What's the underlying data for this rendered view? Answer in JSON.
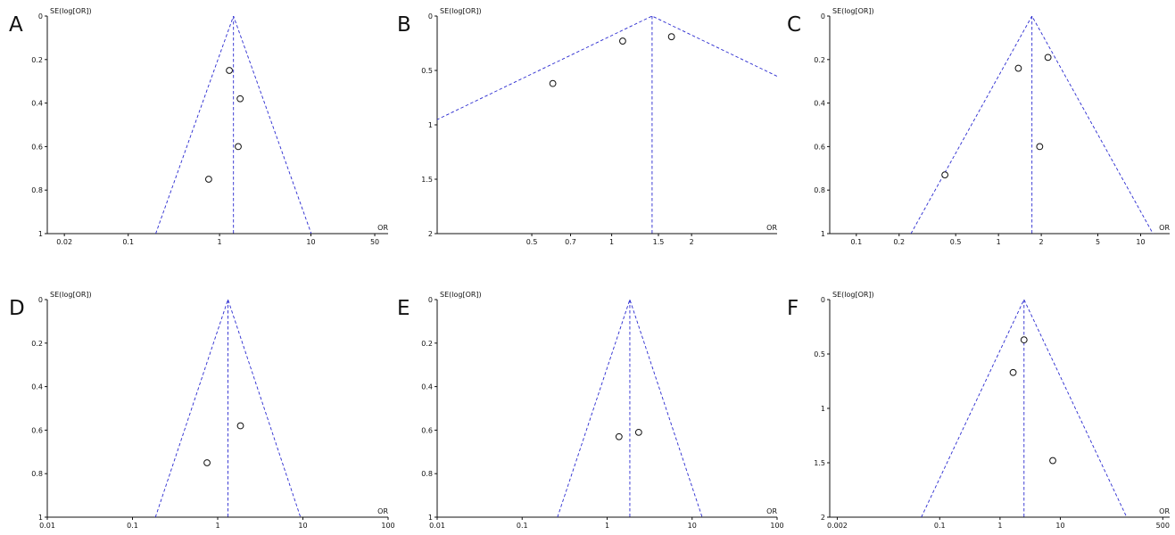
{
  "chart_data": [
    {
      "type": "scatter",
      "panel": "A",
      "ylabel": "SE(log[OR])",
      "xlabel": "OR",
      "xscale": "log",
      "xlim": [
        0.013,
        70
      ],
      "ylim": [
        0,
        1
      ],
      "y_inverted": true,
      "xticks": [
        0.02,
        0.1,
        1,
        10,
        50
      ],
      "xtick_labels": [
        "0.02",
        "0.1",
        "1",
        "10",
        "50"
      ],
      "yticks": [
        0,
        0.2,
        0.4,
        0.6,
        0.8,
        1
      ],
      "ytick_labels": [
        "0",
        "0.2",
        "0.4",
        "0.6",
        "0.8",
        "1"
      ],
      "pooled_or": 1.42,
      "points": [
        {
          "x": 1.28,
          "y": 0.25
        },
        {
          "x": 1.68,
          "y": 0.38
        },
        {
          "x": 1.6,
          "y": 0.6
        },
        {
          "x": 0.76,
          "y": 0.75
        }
      ]
    },
    {
      "type": "scatter",
      "panel": "B",
      "ylabel": "SE(log[OR])",
      "xlabel": "OR",
      "xscale": "log",
      "xlim": [
        0.22,
        4.2
      ],
      "ylim": [
        0,
        2
      ],
      "y_inverted": true,
      "xticks": [
        0.5,
        0.7,
        1,
        1.5,
        2
      ],
      "xtick_labels": [
        "0.5",
        "0.7",
        "1",
        "1.5",
        "2"
      ],
      "yticks": [
        0,
        0.5,
        1,
        1.5,
        2
      ],
      "ytick_labels": [
        "0",
        "0.5",
        "1",
        "1.5",
        "2"
      ],
      "pooled_or": 1.42,
      "points": [
        {
          "x": 1.1,
          "y": 0.23
        },
        {
          "x": 1.68,
          "y": 0.19
        },
        {
          "x": 0.6,
          "y": 0.62
        }
      ]
    },
    {
      "type": "scatter",
      "panel": "C",
      "ylabel": "SE(log[OR])",
      "xlabel": "OR",
      "xscale": "log",
      "xlim": [
        0.065,
        16
      ],
      "ylim": [
        0,
        1
      ],
      "y_inverted": true,
      "xticks": [
        0.1,
        0.2,
        0.5,
        1,
        2,
        5,
        10
      ],
      "xtick_labels": [
        "0.1",
        "0.2",
        "0.5",
        "1",
        "2",
        "5",
        "10"
      ],
      "yticks": [
        0,
        0.2,
        0.4,
        0.6,
        0.8,
        1
      ],
      "ytick_labels": [
        "0",
        "0.2",
        "0.4",
        "0.6",
        "0.8",
        "1"
      ],
      "pooled_or": 1.72,
      "points": [
        {
          "x": 1.38,
          "y": 0.24
        },
        {
          "x": 2.23,
          "y": 0.19
        },
        {
          "x": 1.95,
          "y": 0.6
        },
        {
          "x": 0.42,
          "y": 0.73
        }
      ]
    },
    {
      "type": "scatter",
      "panel": "D",
      "ylabel": "SE(log[OR])",
      "xlabel": "OR",
      "xscale": "log",
      "xlim": [
        0.01,
        100
      ],
      "ylim": [
        0,
        1
      ],
      "y_inverted": true,
      "xticks": [
        0.01,
        0.1,
        1,
        10,
        100
      ],
      "xtick_labels": [
        "0.01",
        "0.1",
        "1",
        "10",
        "100"
      ],
      "yticks": [
        0,
        0.2,
        0.4,
        0.6,
        0.8,
        1
      ],
      "ytick_labels": [
        "0",
        "0.2",
        "0.4",
        "0.6",
        "0.8",
        "1"
      ],
      "pooled_or": 1.32,
      "points": [
        {
          "x": 1.85,
          "y": 0.58
        },
        {
          "x": 0.75,
          "y": 0.75
        }
      ]
    },
    {
      "type": "scatter",
      "panel": "E",
      "ylabel": "SE(log[OR])",
      "xlabel": "OR",
      "xscale": "log",
      "xlim": [
        0.01,
        100
      ],
      "ylim": [
        0,
        1
      ],
      "y_inverted": true,
      "xticks": [
        0.01,
        0.1,
        1,
        10,
        100
      ],
      "xtick_labels": [
        "0.01",
        "0.1",
        "1",
        "10",
        "100"
      ],
      "yticks": [
        0,
        0.2,
        0.4,
        0.6,
        0.8,
        1
      ],
      "ytick_labels": [
        "0",
        "0.2",
        "0.4",
        "0.6",
        "0.8",
        "1"
      ],
      "pooled_or": 1.85,
      "points": [
        {
          "x": 1.38,
          "y": 0.63
        },
        {
          "x": 2.35,
          "y": 0.61
        }
      ]
    },
    {
      "type": "scatter",
      "panel": "F",
      "ylabel": "SE(log[OR])",
      "xlabel": "OR",
      "xscale": "log",
      "xlim": [
        0.0015,
        650
      ],
      "ylim": [
        0,
        2
      ],
      "y_inverted": true,
      "xticks": [
        0.002,
        0.1,
        1,
        10,
        500
      ],
      "xtick_labels": [
        "0.002",
        "0.1",
        "1",
        "10",
        "500"
      ],
      "yticks": [
        0,
        0.5,
        1,
        1.5,
        2
      ],
      "ytick_labels": [
        "0",
        "0.5",
        "1",
        "1.5",
        "2"
      ],
      "pooled_or": 2.5,
      "points": [
        {
          "x": 2.5,
          "y": 0.37
        },
        {
          "x": 1.65,
          "y": 0.67
        },
        {
          "x": 7.5,
          "y": 1.48
        }
      ]
    }
  ],
  "colors": {
    "funnel": "#2a2ad0",
    "axis": "#111111",
    "points": "#111111"
  }
}
